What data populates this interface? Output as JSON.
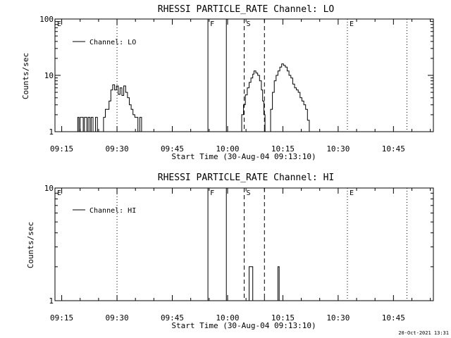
{
  "chart_data": [
    {
      "type": "line",
      "title": "RHESSI PARTICLE_RATE Channel: LO",
      "xlabel": "Start Time (30-Aug-04 09:13:10)",
      "ylabel": "Counts/sec",
      "yscale": "log",
      "ylim": [
        1,
        100
      ],
      "xlim": [
        "09:13:10",
        "10:55:50"
      ],
      "x_ticks": [
        "09:15",
        "09:30",
        "09:45",
        "10:00",
        "10:15",
        "10:30",
        "10:45"
      ],
      "y_ticks": [
        "1",
        "10",
        "100"
      ],
      "legend": "top-left",
      "series": [
        {
          "name": "Channel: LO",
          "color": "#000000",
          "points": [
            [
              "09:19:00",
              1
            ],
            [
              "09:19:20",
              1.8
            ],
            [
              "09:19:40",
              1
            ],
            [
              "09:20:00",
              1.8
            ],
            [
              "09:20:30",
              1.8
            ],
            [
              "09:20:50",
              1
            ],
            [
              "09:21:10",
              1.8
            ],
            [
              "09:21:30",
              1.8
            ],
            [
              "09:21:50",
              1
            ],
            [
              "09:22:10",
              1.8
            ],
            [
              "09:22:40",
              1
            ],
            [
              "09:23:00",
              1.8
            ],
            [
              "09:23:30",
              1
            ],
            [
              "09:24:10",
              1.8
            ],
            [
              "09:24:40",
              1
            ],
            [
              "09:26:00",
              1
            ],
            [
              "09:26:20",
              1.8
            ],
            [
              "09:26:50",
              2.5
            ],
            [
              "09:27:20",
              2.5
            ],
            [
              "09:27:50",
              3.5
            ],
            [
              "09:28:20",
              5.5
            ],
            [
              "09:28:50",
              6.8
            ],
            [
              "09:29:20",
              5.5
            ],
            [
              "09:29:50",
              6.5
            ],
            [
              "09:30:20",
              4.6
            ],
            [
              "09:30:50",
              6
            ],
            [
              "09:31:20",
              4.4
            ],
            [
              "09:31:50",
              6.5
            ],
            [
              "09:32:20",
              5
            ],
            [
              "09:32:50",
              4
            ],
            [
              "09:33:20",
              3
            ],
            [
              "09:33:50",
              2.5
            ],
            [
              "09:34:20",
              2
            ],
            [
              "09:34:50",
              1.8
            ],
            [
              "09:35:20",
              1.8
            ],
            [
              "09:35:40",
              1
            ],
            [
              "09:36:10",
              1.8
            ],
            [
              "09:36:40",
              1
            ]
          ]
        },
        {
          "name": "Channel: LO (segment 2)",
          "color": "#000000",
          "points": [
            [
              "10:03:30",
              1
            ],
            [
              "10:03:50",
              2
            ],
            [
              "10:04:20",
              3
            ],
            [
              "10:04:50",
              4.5
            ],
            [
              "10:05:20",
              6
            ],
            [
              "10:05:50",
              7.5
            ],
            [
              "10:06:20",
              9
            ],
            [
              "10:06:50",
              10.5
            ],
            [
              "10:07:10",
              12
            ],
            [
              "10:07:40",
              11
            ],
            [
              "10:08:10",
              10
            ],
            [
              "10:08:40",
              8
            ],
            [
              "10:09:10",
              5.5
            ],
            [
              "10:09:30",
              3.5
            ],
            [
              "10:09:50",
              2
            ],
            [
              "10:10:10",
              1
            ]
          ]
        },
        {
          "name": "Channel: LO (segment 3)",
          "color": "#000000",
          "points": [
            [
              "10:11:10",
              1
            ],
            [
              "10:11:40",
              2.5
            ],
            [
              "10:12:10",
              5
            ],
            [
              "10:12:40",
              8
            ],
            [
              "10:13:10",
              10
            ],
            [
              "10:13:40",
              12
            ],
            [
              "10:14:10",
              14
            ],
            [
              "10:14:40",
              16
            ],
            [
              "10:15:10",
              15
            ],
            [
              "10:15:40",
              14
            ],
            [
              "10:16:10",
              12
            ],
            [
              "10:16:40",
              10
            ],
            [
              "10:17:10",
              9
            ],
            [
              "10:17:40",
              7
            ],
            [
              "10:18:10",
              6
            ],
            [
              "10:18:40",
              5.5
            ],
            [
              "10:19:10",
              5
            ],
            [
              "10:19:40",
              4
            ],
            [
              "10:20:10",
              3.5
            ],
            [
              "10:20:40",
              3
            ],
            [
              "10:21:10",
              2.5
            ],
            [
              "10:21:40",
              1.6
            ],
            [
              "10:22:10",
              1
            ]
          ]
        }
      ],
      "markers": [
        {
          "label": "E",
          "time": "09:13:10",
          "style": "dotted"
        },
        {
          "label": "",
          "time": "09:30:00",
          "style": "dotted"
        },
        {
          "label": "F",
          "time": "09:54:40",
          "style": "solid"
        },
        {
          "label": "",
          "time": "09:59:40",
          "style": "solid"
        },
        {
          "label": "S",
          "time": "10:04:30",
          "style": "dashed"
        },
        {
          "label": "",
          "time": "10:10:00",
          "style": "dashed"
        },
        {
          "label": "E",
          "time": "10:32:30",
          "style": "dotted"
        },
        {
          "label": "",
          "time": "10:48:40",
          "style": "dotted"
        }
      ]
    },
    {
      "type": "line",
      "title": "RHESSI PARTICLE_RATE Channel: HI",
      "xlabel": "Start Time (30-Aug-04 09:13:10)",
      "ylabel": "Counts/sec",
      "yscale": "log",
      "ylim": [
        1,
        10
      ],
      "xlim": [
        "09:13:10",
        "10:55:50"
      ],
      "x_ticks": [
        "09:15",
        "09:30",
        "09:45",
        "10:00",
        "10:15",
        "10:30",
        "10:45"
      ],
      "y_ticks": [
        "1",
        "10"
      ],
      "legend": "top-left",
      "series": [
        {
          "name": "Channel: HI",
          "color": "#000000",
          "points": [
            [
              "10:05:30",
              1
            ],
            [
              "10:05:50",
              2
            ],
            [
              "10:06:30",
              2
            ],
            [
              "10:06:50",
              1
            ]
          ]
        },
        {
          "name": "Channel: HI (segment 2)",
          "color": "#000000",
          "points": [
            [
              "10:13:20",
              1
            ],
            [
              "10:13:40",
              2
            ],
            [
              "10:14:00",
              1
            ]
          ]
        }
      ],
      "markers": [
        {
          "label": "E",
          "time": "09:13:10",
          "style": "dotted"
        },
        {
          "label": "",
          "time": "09:30:00",
          "style": "dotted"
        },
        {
          "label": "F",
          "time": "09:54:40",
          "style": "solid"
        },
        {
          "label": "",
          "time": "09:59:40",
          "style": "solid"
        },
        {
          "label": "S",
          "time": "10:04:30",
          "style": "dashed"
        },
        {
          "label": "",
          "time": "10:10:00",
          "style": "dashed"
        },
        {
          "label": "E",
          "time": "10:32:30",
          "style": "dotted"
        },
        {
          "label": "",
          "time": "10:48:40",
          "style": "dotted"
        }
      ]
    }
  ],
  "footer": {
    "timestamp": "20-Oct-2021 13:31"
  }
}
